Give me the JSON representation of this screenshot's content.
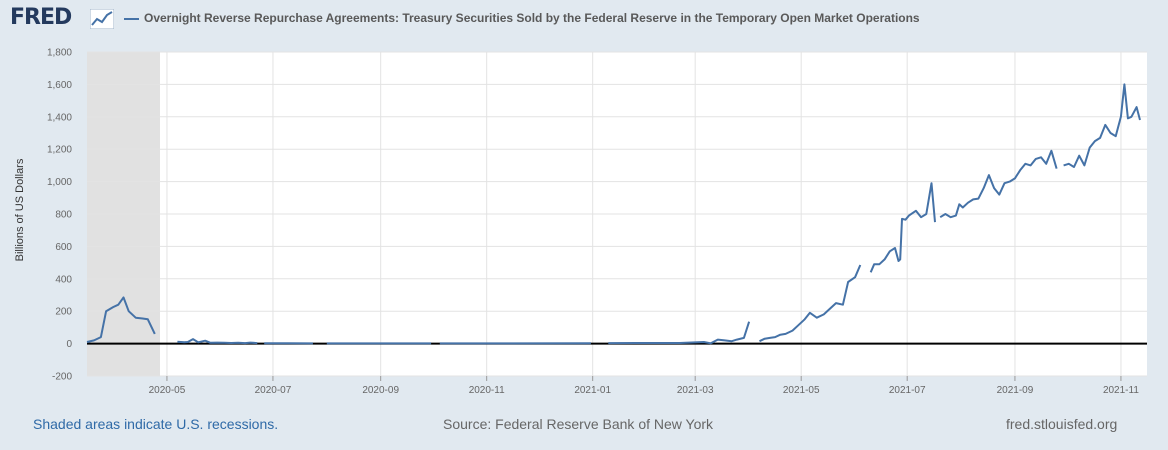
{
  "header": {
    "logo_text": "FRED",
    "logo_icon": "line-chart-icon",
    "title": "Overnight Reverse Repurchase Agreements: Treasury Securities Sold by the Federal Reserve in the Temporary Open Market Operations"
  },
  "colors": {
    "series": "#4572a7",
    "recession": "#e1e1e1",
    "zero_line": "#000000",
    "background": "#e1e9f0",
    "plot": "#ffffff",
    "link": "#2f6aa7"
  },
  "chart_data": {
    "type": "line",
    "title": "Overnight Reverse Repurchase Agreements: Treasury Securities Sold by the Federal Reserve in the Temporary Open Market Operations",
    "ylabel": "Billions of US Dollars",
    "xlabel": "",
    "ylim": [
      -200,
      1800
    ],
    "yticks": [
      -200,
      0,
      200,
      400,
      600,
      800,
      1000,
      1200,
      1400,
      1600,
      1800
    ],
    "ytick_labels": [
      "-200",
      "0",
      "200",
      "400",
      "600",
      "800",
      "1,000",
      "1,200",
      "1,400",
      "1,600",
      "1,800"
    ],
    "xlim": [
      "2020-03-16",
      "2021-11-16"
    ],
    "xticks": [
      "2020-05-01",
      "2020-07-01",
      "2020-09-01",
      "2020-11-01",
      "2021-01-01",
      "2021-03-01",
      "2021-05-01",
      "2021-07-01",
      "2021-09-01",
      "2021-11-01"
    ],
    "xtick_labels": [
      "2020-05",
      "2020-07",
      "2020-09",
      "2020-11",
      "2021-01",
      "2021-03",
      "2021-05",
      "2021-07",
      "2021-09",
      "2021-11"
    ],
    "recession": {
      "start": "2020-03-16",
      "end": "2020-04-27"
    },
    "grid": true,
    "legend": "top-left",
    "series": [
      {
        "name": "Overnight Reverse Repurchase Agreements: Treasury Securities Sold by the Federal Reserve in the Temporary Open Market Operations",
        "segments": [
          [
            [
              "2020-03-16",
              10
            ],
            [
              "2020-03-20",
              20
            ],
            [
              "2020-03-24",
              40
            ],
            [
              "2020-03-27",
              200
            ],
            [
              "2020-03-31",
              225
            ],
            [
              "2020-04-03",
              240
            ],
            [
              "2020-04-06",
              285
            ],
            [
              "2020-04-09",
              200
            ],
            [
              "2020-04-13",
              160
            ],
            [
              "2020-04-17",
              155
            ],
            [
              "2020-04-20",
              150
            ],
            [
              "2020-04-24",
              60
            ]
          ],
          [
            [
              "2020-05-07",
              12
            ],
            [
              "2020-05-11",
              8
            ],
            [
              "2020-05-13",
              10
            ],
            [
              "2020-05-16",
              28
            ],
            [
              "2020-05-19",
              8
            ],
            [
              "2020-05-23",
              18
            ],
            [
              "2020-05-26",
              5
            ],
            [
              "2020-05-30",
              6
            ],
            [
              "2020-06-03",
              5
            ],
            [
              "2020-06-07",
              4
            ],
            [
              "2020-06-11",
              5
            ],
            [
              "2020-06-15",
              3
            ],
            [
              "2020-06-18",
              6
            ],
            [
              "2020-06-22",
              3
            ]
          ],
          [
            [
              "2020-06-26",
              2
            ],
            [
              "2020-07-10",
              2
            ],
            [
              "2020-07-24",
              1
            ]
          ],
          [
            [
              "2020-08-01",
              1
            ],
            [
              "2020-09-01",
              1
            ],
            [
              "2020-09-30",
              1
            ]
          ],
          [
            [
              "2020-10-05",
              1
            ],
            [
              "2020-11-15",
              1
            ],
            [
              "2020-12-31",
              2
            ]
          ],
          [
            [
              "2021-01-10",
              3
            ],
            [
              "2021-02-01",
              4
            ],
            [
              "2021-02-20",
              4
            ],
            [
              "2021-03-06",
              10
            ],
            [
              "2021-03-10",
              2
            ],
            [
              "2021-03-14",
              25
            ],
            [
              "2021-03-18",
              20
            ],
            [
              "2021-03-22",
              15
            ],
            [
              "2021-03-25",
              25
            ],
            [
              "2021-03-29",
              35
            ],
            [
              "2021-04-01",
              135
            ]
          ],
          [
            [
              "2021-04-07",
              15
            ],
            [
              "2021-04-10",
              30
            ],
            [
              "2021-04-13",
              35
            ],
            [
              "2021-04-16",
              40
            ],
            [
              "2021-04-19",
              55
            ],
            [
              "2021-04-22",
              60
            ],
            [
              "2021-04-26",
              80
            ],
            [
              "2021-04-29",
              110
            ],
            [
              "2021-05-03",
              150
            ],
            [
              "2021-05-06",
              190
            ],
            [
              "2021-05-10",
              160
            ],
            [
              "2021-05-14",
              180
            ],
            [
              "2021-05-18",
              220
            ],
            [
              "2021-05-21",
              250
            ],
            [
              "2021-05-25",
              240
            ],
            [
              "2021-05-28",
              380
            ],
            [
              "2021-06-01",
              410
            ],
            [
              "2021-06-04",
              485
            ]
          ],
          [
            [
              "2021-06-10",
              440
            ],
            [
              "2021-06-12",
              490
            ],
            [
              "2021-06-15",
              490
            ],
            [
              "2021-06-18",
              520
            ],
            [
              "2021-06-21",
              570
            ],
            [
              "2021-06-24",
              590
            ],
            [
              "2021-06-26",
              510
            ],
            [
              "2021-06-27",
              520
            ],
            [
              "2021-06-28",
              770
            ],
            [
              "2021-06-30",
              765
            ],
            [
              "2021-07-02",
              790
            ],
            [
              "2021-07-06",
              820
            ],
            [
              "2021-07-09",
              780
            ],
            [
              "2021-07-12",
              800
            ],
            [
              "2021-07-15",
              990
            ],
            [
              "2021-07-17",
              750
            ]
          ],
          [
            [
              "2021-07-20",
              780
            ],
            [
              "2021-07-23",
              800
            ],
            [
              "2021-07-26",
              780
            ],
            [
              "2021-07-29",
              790
            ],
            [
              "2021-07-31",
              860
            ],
            [
              "2021-08-02",
              840
            ],
            [
              "2021-08-05",
              870
            ],
            [
              "2021-08-08",
              890
            ],
            [
              "2021-08-11",
              895
            ],
            [
              "2021-08-14",
              960
            ],
            [
              "2021-08-17",
              1040
            ],
            [
              "2021-08-20",
              960
            ],
            [
              "2021-08-23",
              920
            ],
            [
              "2021-08-26",
              990
            ],
            [
              "2021-08-29",
              1000
            ],
            [
              "2021-09-01",
              1020
            ],
            [
              "2021-09-04",
              1070
            ],
            [
              "2021-09-07",
              1110
            ],
            [
              "2021-09-10",
              1100
            ],
            [
              "2021-09-13",
              1140
            ],
            [
              "2021-09-16",
              1150
            ],
            [
              "2021-09-19",
              1110
            ],
            [
              "2021-09-22",
              1190
            ],
            [
              "2021-09-25",
              1080
            ]
          ],
          [
            [
              "2021-09-29",
              1100
            ],
            [
              "2021-10-02",
              1110
            ],
            [
              "2021-10-05",
              1090
            ],
            [
              "2021-10-08",
              1160
            ],
            [
              "2021-10-11",
              1100
            ],
            [
              "2021-10-14",
              1210
            ],
            [
              "2021-10-17",
              1250
            ],
            [
              "2021-10-20",
              1270
            ],
            [
              "2021-10-23",
              1350
            ],
            [
              "2021-10-26",
              1300
            ],
            [
              "2021-10-29",
              1280
            ],
            [
              "2021-11-01",
              1400
            ],
            [
              "2021-11-03",
              1600
            ],
            [
              "2021-11-05",
              1390
            ],
            [
              "2021-11-07",
              1400
            ],
            [
              "2021-11-10",
              1460
            ],
            [
              "2021-11-12",
              1380
            ]
          ]
        ]
      }
    ]
  },
  "footer": {
    "recession_note": "Shaded areas indicate U.S. recessions.",
    "source": "Source: Federal Reserve Bank of New York",
    "site": "fred.stlouisfed.org"
  }
}
